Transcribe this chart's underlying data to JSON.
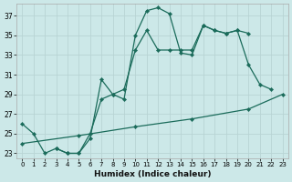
{
  "xlabel": "Humidex (Indice chaleur)",
  "bg_color": "#cce8e8",
  "line_color": "#1a6b5a",
  "grid_color": "#b8d4d4",
  "series1_x": [
    0,
    1,
    2,
    3,
    4,
    5,
    6,
    7,
    8,
    9,
    10,
    11,
    12,
    13,
    14,
    15,
    16,
    17,
    18,
    19,
    20,
    21,
    22
  ],
  "series1_y": [
    26,
    25,
    23,
    23.5,
    23,
    23,
    24.5,
    30.5,
    29,
    28.5,
    35,
    37.5,
    37.8,
    37.2,
    33.2,
    33,
    36,
    35.5,
    35.2,
    35.5,
    32,
    30,
    29.5
  ],
  "series2_x": [
    3,
    4,
    5,
    6,
    7,
    8,
    9,
    10,
    11,
    12,
    13,
    14,
    15,
    16,
    17,
    18,
    19,
    20
  ],
  "series2_y": [
    23.5,
    23,
    23,
    25,
    28.5,
    29,
    29.5,
    33.5,
    35.5,
    33.5,
    33.5,
    33.5,
    33.5,
    36,
    35.5,
    35.2,
    35.5,
    35.2
  ],
  "series3_x": [
    0,
    5,
    10,
    15,
    20,
    23
  ],
  "series3_y": [
    24,
    24.8,
    25.7,
    26.5,
    27.5,
    29
  ],
  "ylim": [
    22.5,
    38.2
  ],
  "xlim": [
    -0.5,
    23.5
  ],
  "yticks": [
    23,
    25,
    27,
    29,
    31,
    33,
    35,
    37
  ],
  "xticks": [
    0,
    1,
    2,
    3,
    4,
    5,
    6,
    7,
    8,
    9,
    10,
    11,
    12,
    13,
    14,
    15,
    16,
    17,
    18,
    19,
    20,
    21,
    22,
    23
  ]
}
